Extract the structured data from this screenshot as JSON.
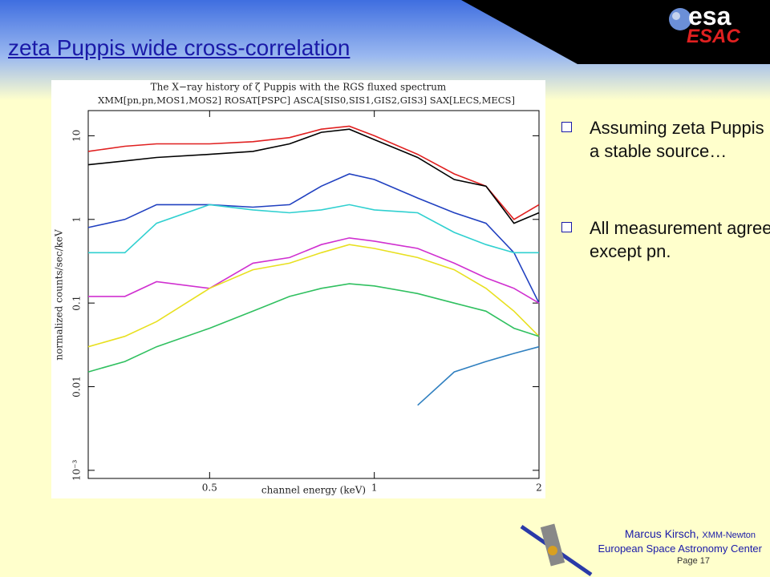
{
  "header": {
    "title": "zeta Puppis wide cross-correlation"
  },
  "logo": {
    "name": "esa",
    "sub": "ESAC"
  },
  "chart_data": {
    "type": "line",
    "title": "The X−ray history of ζ Puppis with the RGS fluxed spectrum",
    "subtitle": "XMM[pn,pn,MOS1,MOS2] ROSAT[PSPC] ASCA[SIS0,SIS1,GIS2,GIS3] SAX[LECS,MECS]",
    "x_label": "channel energy (keV)",
    "y_label": "normalized counts/sec/keV",
    "x": [
      0.3,
      0.35,
      0.4,
      0.5,
      0.6,
      0.7,
      0.8,
      0.9,
      1.0,
      1.2,
      1.4,
      1.6,
      1.8,
      2.0
    ],
    "series": [
      {
        "color": "#e02020",
        "values": [
          6.5,
          7.5,
          8,
          8,
          8.5,
          9.5,
          12,
          13,
          10,
          6,
          3.5,
          2.5,
          1,
          1.5
        ]
      },
      {
        "color": "#000000",
        "values": [
          4.5,
          5,
          5.5,
          6,
          6.5,
          8,
          11,
          12,
          9,
          5.5,
          3,
          2.5,
          0.9,
          1.2
        ]
      },
      {
        "color": "#2040c0",
        "values": [
          0.8,
          1,
          1.5,
          1.5,
          1.4,
          1.5,
          2.5,
          3.5,
          3,
          1.8,
          1.2,
          0.9,
          0.4,
          0.1
        ]
      },
      {
        "color": "#30d0d0",
        "values": [
          0.4,
          0.4,
          0.9,
          1.5,
          1.3,
          1.2,
          1.3,
          1.5,
          1.3,
          1.2,
          0.7,
          0.5,
          0.4,
          0.4
        ]
      },
      {
        "color": "#d030d0",
        "values": [
          0.12,
          0.12,
          0.18,
          0.15,
          0.3,
          0.35,
          0.5,
          0.6,
          0.55,
          0.45,
          0.3,
          0.2,
          0.15,
          0.1
        ]
      },
      {
        "color": "#e8e020",
        "values": [
          0.03,
          0.04,
          0.06,
          0.15,
          0.25,
          0.3,
          0.4,
          0.5,
          0.45,
          0.35,
          0.25,
          0.15,
          0.08,
          0.04
        ]
      },
      {
        "color": "#30c060",
        "values": [
          0.015,
          0.02,
          0.03,
          0.05,
          0.08,
          0.12,
          0.15,
          0.17,
          0.16,
          0.13,
          0.1,
          0.08,
          0.05,
          0.04
        ]
      },
      {
        "color": "#3080c0",
        "values": [
          null,
          null,
          null,
          null,
          null,
          null,
          null,
          null,
          null,
          0.006,
          0.015,
          0.02,
          0.025,
          0.03
        ]
      }
    ],
    "xlim": [
      0.3,
      2
    ],
    "ylim": [
      0.0008,
      20
    ],
    "log_x": true,
    "log_y": true,
    "xticks": [
      0.5,
      1,
      2
    ],
    "yticks": [
      {
        "value": 0.001,
        "label": "10⁻³"
      },
      0.01,
      0.1,
      1,
      10
    ]
  },
  "bullets": [
    "Assuming zeta Puppis is a stable source…",
    "All measurement agree except pn."
  ],
  "footer": {
    "author": "Marcus Kirsch,",
    "mission": "XMM-Newton",
    "org": "European Space Astronomy Center",
    "page": "Page 17"
  }
}
